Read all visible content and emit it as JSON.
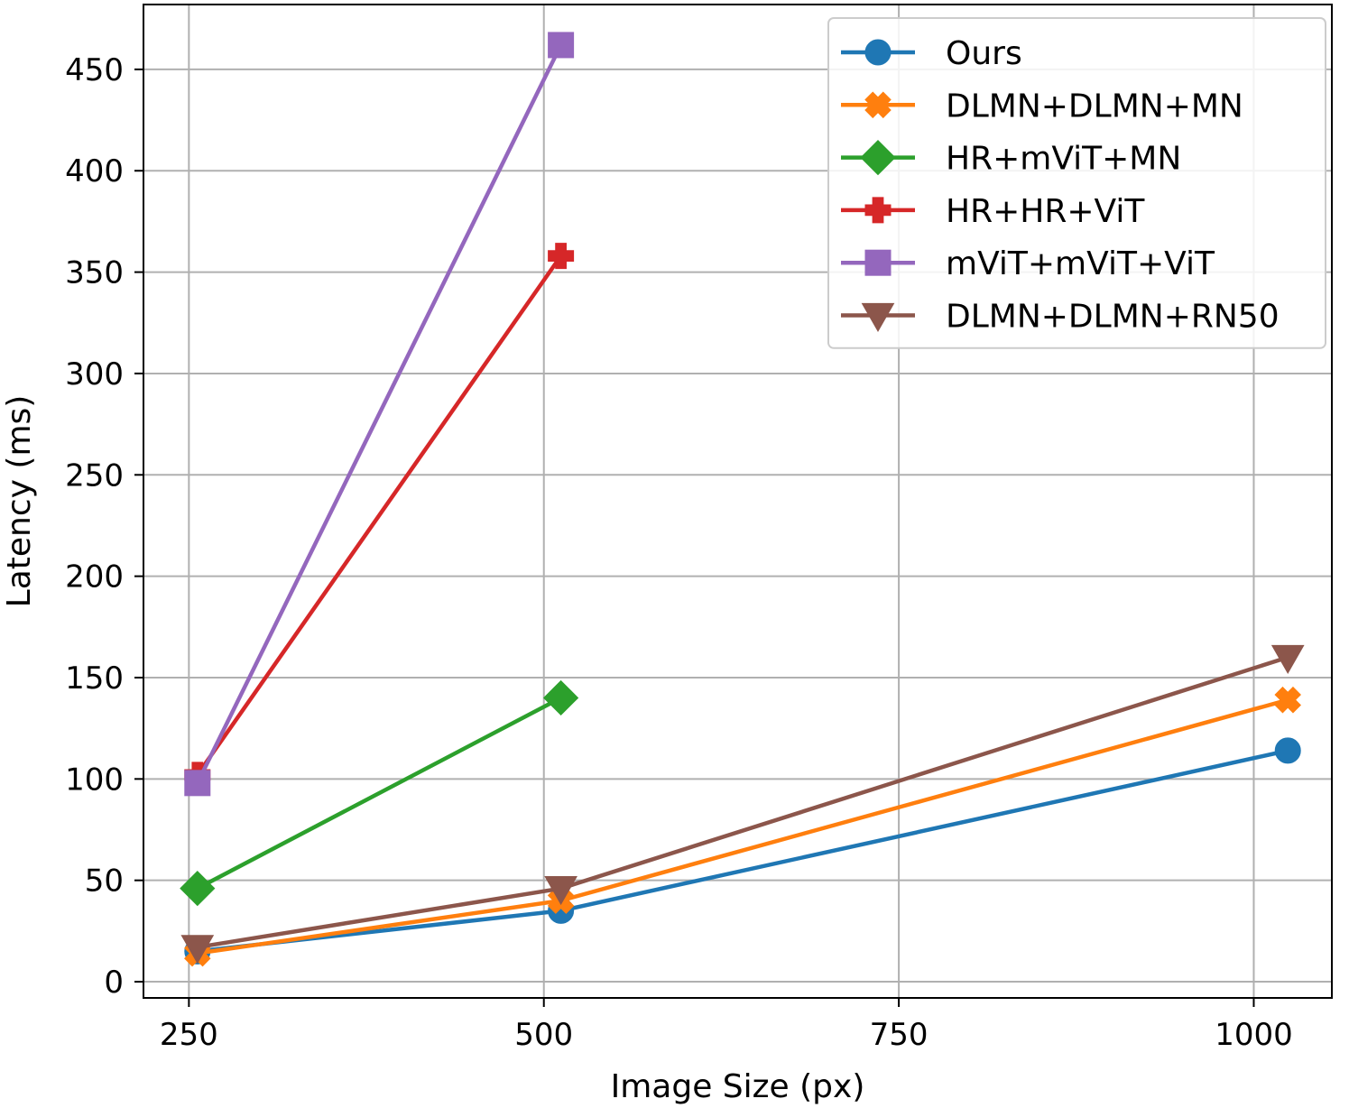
{
  "chart_data": {
    "type": "line",
    "title": "",
    "xlabel": "Image Size (px)",
    "ylabel": "Latency (ms)",
    "xlim": [
      218,
      1055
    ],
    "ylim": [
      -8,
      482
    ],
    "xticks": [
      250,
      500,
      750,
      1000
    ],
    "yticks": [
      0,
      50,
      100,
      150,
      200,
      250,
      300,
      350,
      400,
      450
    ],
    "grid": true,
    "legend_position": "top-right",
    "series": [
      {
        "name": "Ours",
        "color": "#1f77b4",
        "marker": "circle",
        "x": [
          256,
          512,
          1024
        ],
        "y": [
          15,
          35,
          114
        ]
      },
      {
        "name": "DLMN+DLMN+MN",
        "color": "#ff7f0e",
        "marker": "x-filled",
        "x": [
          256,
          512,
          1024
        ],
        "y": [
          14,
          40,
          139
        ]
      },
      {
        "name": "HR+mViT+MN",
        "color": "#2ca02c",
        "marker": "diamond",
        "x": [
          256,
          512
        ],
        "y": [
          46,
          140
        ]
      },
      {
        "name": "HR+HR+ViT",
        "color": "#d62728",
        "marker": "plus-filled",
        "x": [
          256,
          512
        ],
        "y": [
          102,
          358
        ]
      },
      {
        "name": "mViT+mViT+ViT",
        "color": "#9467bd",
        "marker": "square",
        "x": [
          256,
          512
        ],
        "y": [
          98,
          462
        ]
      },
      {
        "name": "DLMN+DLMN+RN50",
        "color": "#8c564b",
        "marker": "triangle-down",
        "x": [
          256,
          512,
          1024
        ],
        "y": [
          17,
          46,
          160
        ]
      }
    ]
  }
}
